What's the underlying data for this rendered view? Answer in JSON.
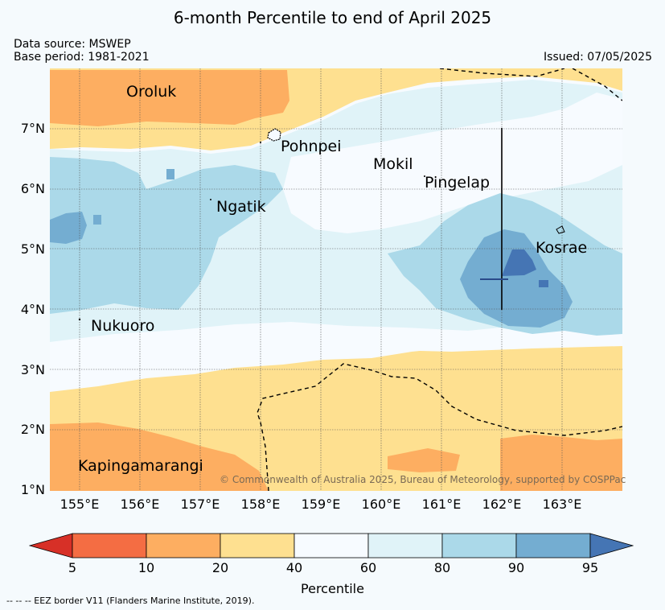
{
  "title": "6-month Percentile to end of April 2025",
  "data_source": "Data source: MSWEP",
  "base_period": "Base period: 1981-2021",
  "issued": "Issued: 07/05/2025",
  "lat_labels": [
    "7°N",
    "6°N",
    "5°N",
    "4°N",
    "3°N",
    "2°N",
    "1°N"
  ],
  "lon_labels": [
    "155°E",
    "156°E",
    "157°E",
    "158°E",
    "159°E",
    "160°E",
    "161°E",
    "162°E",
    "163°E"
  ],
  "places": [
    "Oroluk",
    "Pohnpei",
    "Mokil",
    "Pingelap",
    "Ngatik",
    "Kosrae",
    "Nukuoro",
    "Kapingamarangi"
  ],
  "copyright": "© Commonwealth of Australia 2025, Bureau of Meteorology, supported by COSPPac",
  "colorbar": {
    "ticks": [
      "5",
      "10",
      "20",
      "40",
      "60",
      "80",
      "90",
      "95"
    ],
    "label": "Percentile",
    "colors": {
      "below_5": "#d73027",
      "p5_10": "#f46d43",
      "p10_20": "#fdae61",
      "p20_40": "#fee090",
      "p40_60": "#f7fbff",
      "p60_80": "#e0f3f8",
      "p80_90": "#abd9e9",
      "p90_95": "#74add1",
      "above_95": "#4575b4"
    }
  },
  "footnote": "--  --  -- EEZ border V11 (Flanders Marine Institute, 2019)."
}
